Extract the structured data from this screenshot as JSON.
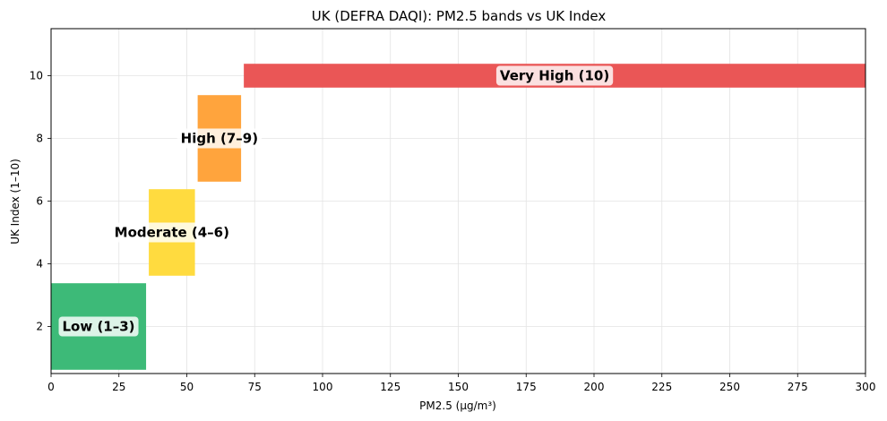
{
  "chart_data": {
    "type": "bar",
    "orientation": "horizontal-range",
    "title": "UK (DEFRA DAQI): PM2.5 bands vs UK Index",
    "xlabel": "PM2.5 (µg/m³)",
    "ylabel": "UK Index (1–10)",
    "xlim": [
      0,
      300
    ],
    "ylim": [
      0.5,
      11.5
    ],
    "xticks": [
      0,
      25,
      50,
      75,
      100,
      125,
      150,
      175,
      200,
      225,
      250,
      275,
      300
    ],
    "yticks": [
      2,
      4,
      6,
      8,
      10
    ],
    "grid": true,
    "bands": [
      {
        "label": "Low (1–3)",
        "pm25_min": 0,
        "pm25_max": 35,
        "index_min": 1,
        "index_max": 3,
        "color": "#3dba78"
      },
      {
        "label": "Moderate (4–6)",
        "pm25_min": 36,
        "pm25_max": 53,
        "index_min": 4,
        "index_max": 6,
        "color": "#ffdb3f"
      },
      {
        "label": "High (7–9)",
        "pm25_min": 54,
        "pm25_max": 70,
        "index_min": 7,
        "index_max": 9,
        "color": "#ffa43d"
      },
      {
        "label": "Very High (10)",
        "pm25_min": 71,
        "pm25_max": 300,
        "index_min": 10,
        "index_max": 10,
        "color": "#ea5656"
      }
    ]
  }
}
